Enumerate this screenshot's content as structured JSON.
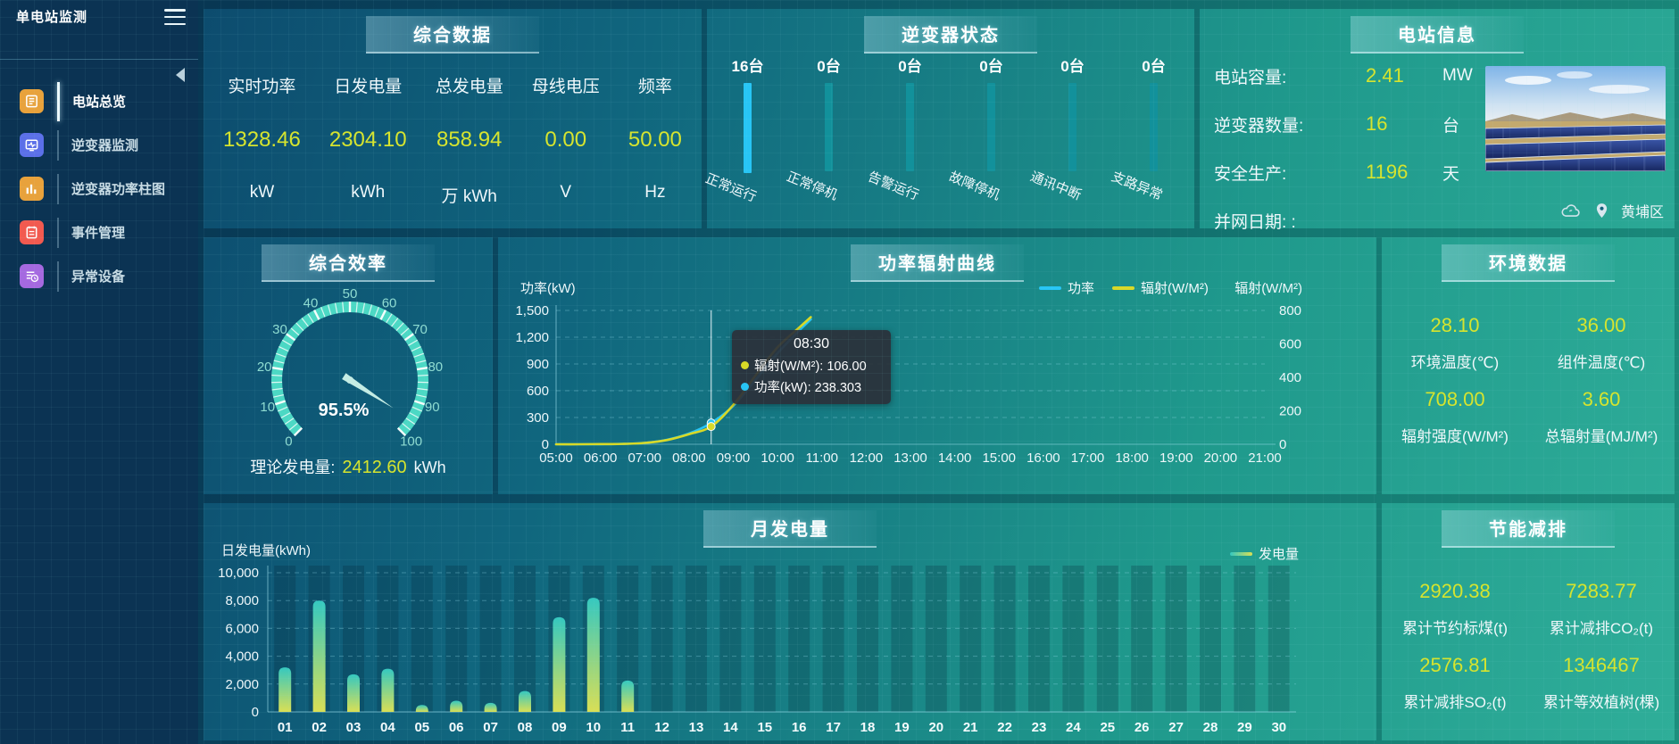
{
  "app": {
    "title": "单电站监测"
  },
  "colors": {
    "accent_value": "#d6e42e",
    "bar_highlight": "#27c5f5",
    "bar_normal": "#12919b",
    "line_power": "#27c5f5",
    "line_radiation": "#d9d926",
    "gauge": "#4cd8c4"
  },
  "sidebar": {
    "items": [
      {
        "label": "电站总览",
        "icon": "station-overview-icon",
        "icon_color": "#e8a23c",
        "active": true
      },
      {
        "label": "逆变器监测",
        "icon": "inverter-monitor-icon",
        "icon_color": "#5b6fe8",
        "active": false
      },
      {
        "label": "逆变器功率柱图",
        "icon": "inverter-power-bars-icon",
        "icon_color": "#e8a23c",
        "active": false
      },
      {
        "label": "事件管理",
        "icon": "event-management-icon",
        "icon_color": "#f25a50",
        "active": false
      },
      {
        "label": "异常设备",
        "icon": "abnormal-device-icon",
        "icon_color": "#a569e0",
        "active": false
      }
    ]
  },
  "summary": {
    "title": "综合数据",
    "metrics": [
      {
        "label": "实时功率",
        "value": "1328.46",
        "unit": "kW"
      },
      {
        "label": "日发电量",
        "value": "2304.10",
        "unit": "kWh"
      },
      {
        "label": "总发电量",
        "value": "858.94",
        "unit": "万 kWh"
      },
      {
        "label": "母线电压",
        "value": "0.00",
        "unit": "V"
      },
      {
        "label": "频率",
        "value": "50.00",
        "unit": "Hz"
      }
    ]
  },
  "inverter_status": {
    "title": "逆变器状态",
    "bars": [
      {
        "count": "16台",
        "label": "正常运行",
        "highlight": true
      },
      {
        "count": "0台",
        "label": "正常停机",
        "highlight": false
      },
      {
        "count": "0台",
        "label": "告警运行",
        "highlight": false
      },
      {
        "count": "0台",
        "label": "故障停机",
        "highlight": false
      },
      {
        "count": "0台",
        "label": "通讯中断",
        "highlight": false
      },
      {
        "count": "0台",
        "label": "支路异常",
        "highlight": false
      }
    ]
  },
  "station_info": {
    "title": "电站信息",
    "rows": [
      {
        "label": "电站容量:",
        "value": "2.41",
        "unit": "MW"
      },
      {
        "label": "逆变器数量:",
        "value": "16",
        "unit": "台"
      },
      {
        "label": "安全生产:",
        "value": "1196",
        "unit": "天"
      },
      {
        "label": "并网日期: :",
        "value": "",
        "unit": ""
      }
    ],
    "location": "黄埔区"
  },
  "efficiency": {
    "title": "综合效率",
    "footer_label": "理论发电量:",
    "footer_value": "2412.60",
    "footer_unit": "kWh"
  },
  "power_curve": {
    "title": "功率辐射曲线"
  },
  "environment": {
    "title": "环境数据",
    "metrics": [
      {
        "value": "28.10",
        "label": "环境温度(℃)"
      },
      {
        "value": "36.00",
        "label": "组件温度(℃)"
      },
      {
        "value": "708.00",
        "label": "辐射强度(W/M²)"
      },
      {
        "value": "3.60",
        "label": "总辐射量(MJ/M²)"
      }
    ]
  },
  "monthly": {
    "title": "月发电量"
  },
  "saving": {
    "title": "节能减排",
    "metrics": [
      {
        "value": "2920.38",
        "label": "累计节约标煤(t)"
      },
      {
        "value": "7283.77",
        "label": "累计减排CO₂(t)"
      },
      {
        "value": "2576.81",
        "label": "累计减排SO₂(t)"
      },
      {
        "value": "1346467",
        "label": "累计等效植树(棵)"
      }
    ]
  },
  "chart_data": [
    {
      "id": "efficiency_gauge",
      "type": "gauge",
      "min": 0,
      "max": 100,
      "value": 95.5,
      "value_label": "95.5%",
      "major_tick_step": 10,
      "minor_tick_step": 2,
      "tick_labels": [
        "0",
        "10",
        "20",
        "30",
        "40",
        "50",
        "60",
        "70",
        "80",
        "90",
        "100"
      ]
    },
    {
      "id": "power_radiation_curve",
      "type": "line",
      "title": "功率辐射曲线",
      "x_hours": [
        5,
        5.5,
        6,
        6.5,
        7,
        7.5,
        8,
        8.5,
        9,
        9.5,
        10,
        10.5,
        10.75
      ],
      "x_range": [
        5,
        21
      ],
      "x_ticks": [
        "05:00",
        "06:00",
        "07:00",
        "08:00",
        "09:00",
        "10:00",
        "11:00",
        "12:00",
        "13:00",
        "14:00",
        "15:00",
        "16:00",
        "17:00",
        "18:00",
        "19:00",
        "20:00",
        "21:00"
      ],
      "left_axis": {
        "name": "功率(kW)",
        "min": 0,
        "max": 1500,
        "ticks": [
          "0",
          "300",
          "600",
          "900",
          "1,200",
          "1,500"
        ]
      },
      "right_axis": {
        "name": "辐射(W/M²)",
        "min": 0,
        "max": 800,
        "ticks": [
          "0",
          "200",
          "400",
          "600",
          "800"
        ]
      },
      "series": [
        {
          "name": "功率",
          "color": "#27c5f5",
          "axis": "left",
          "values": [
            0,
            0,
            1,
            4,
            15,
            50,
            120,
            238.3,
            430,
            720,
            1020,
            1280,
            1400
          ]
        },
        {
          "name": "辐射(W/M²)",
          "color": "#d9d926",
          "axis": "right",
          "values": [
            0,
            0,
            1,
            2,
            8,
            25,
            60,
            106,
            235,
            410,
            580,
            700,
            760
          ]
        }
      ],
      "crosshair_index": 7,
      "tooltip": {
        "title": "08:30",
        "rows": [
          {
            "color": "#d9d926",
            "text": "辐射(W/M²): 106.00"
          },
          {
            "color": "#27c5f5",
            "text": "功率(kW): 238.303"
          }
        ]
      }
    },
    {
      "id": "monthly_generation",
      "type": "bar",
      "title": "月发电量",
      "axis_name": "日发电量(kWh)",
      "categories": [
        "01",
        "02",
        "03",
        "04",
        "05",
        "06",
        "07",
        "08",
        "09",
        "10",
        "11",
        "12",
        "13",
        "14",
        "15",
        "16",
        "17",
        "18",
        "19",
        "20",
        "21",
        "22",
        "23",
        "24",
        "25",
        "26",
        "27",
        "28",
        "29",
        "30"
      ],
      "values": [
        3200,
        8000,
        2700,
        3100,
        500,
        800,
        650,
        1500,
        6800,
        8200,
        2250,
        0,
        0,
        0,
        0,
        0,
        0,
        0,
        0,
        0,
        0,
        0,
        0,
        0,
        0,
        0,
        0,
        0,
        0,
        0
      ],
      "y_max": 10000,
      "y_ticks": [
        "0",
        "2,000",
        "4,000",
        "6,000",
        "8,000",
        "10,000"
      ],
      "legend": [
        {
          "name": "发电量",
          "color_top": "#35c8c0",
          "color_bottom": "#d9df55"
        }
      ]
    }
  ]
}
